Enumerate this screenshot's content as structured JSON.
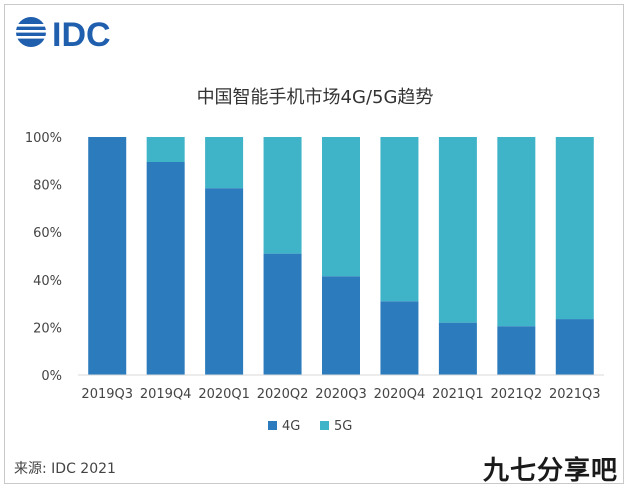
{
  "brand": {
    "logo_text": "IDC",
    "logo_color": "#1f5fae"
  },
  "footer": {
    "source": "来源: IDC 2021",
    "watermark": "九七分享吧"
  },
  "colors": {
    "series_4g": "#2b7bbd",
    "series_5g": "#3fb3c7",
    "axis_text": "#444444",
    "gridline": "#d9d9d9"
  },
  "chart_data": {
    "type": "bar",
    "stacked": true,
    "title": "中国智能手机市场4G/5G趋势",
    "xlabel": "",
    "ylabel": "",
    "categories": [
      "2019Q3",
      "2019Q4",
      "2020Q1",
      "2020Q2",
      "2020Q3",
      "2020Q4",
      "2021Q1",
      "2021Q2",
      "2021Q3"
    ],
    "series": [
      {
        "name": "4G",
        "values": [
          100,
          89.5,
          78.5,
          51,
          41.5,
          31,
          22,
          20.5,
          23.5
        ]
      },
      {
        "name": "5G",
        "values": [
          0,
          10.5,
          21.5,
          49,
          58.5,
          69,
          78,
          79.5,
          76.5
        ]
      }
    ],
    "ylim": [
      0,
      100
    ],
    "yticks": [
      "0%",
      "20%",
      "40%",
      "60%",
      "80%",
      "100%"
    ],
    "legend": "bottom",
    "grid": false
  }
}
